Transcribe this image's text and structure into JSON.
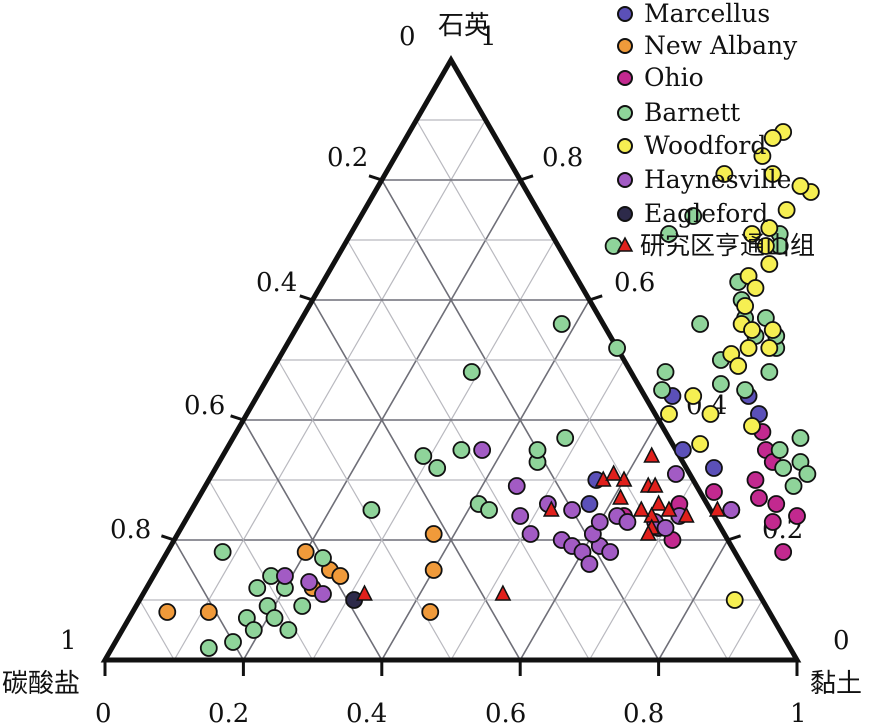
{
  "chart_data": {
    "type": "scatter",
    "subtype": "ternary",
    "grid": true,
    "legend_position": "top-right",
    "corners": {
      "top": "石英",
      "left": "碳酸盐",
      "right": "黏土"
    },
    "axes": {
      "clay_ticks": [
        "0",
        "0.2",
        "0.4",
        "0.6",
        "0.8",
        "1"
      ],
      "quartz_ticks": [
        "0.2",
        "0.4",
        "0.6",
        "0.8"
      ],
      "carbonate_ticks": [
        "0",
        "0.2",
        "0.4",
        "0.6",
        "0.8",
        "1"
      ],
      "quartz_apex_left": "0",
      "quartz_apex_right": "1"
    },
    "series": [
      {
        "name": "Marcellus",
        "color": "#5b50b8",
        "marker": "circle",
        "points": [
          [
            0.6,
            0.44
          ],
          [
            0.71,
            0.44
          ],
          [
            0.66,
            0.35
          ],
          [
            0.72,
            0.32
          ],
          [
            0.56,
            0.3
          ],
          [
            0.74,
            0.41
          ],
          [
            0.57,
            0.26
          ]
        ]
      },
      {
        "name": "New Albany",
        "color": "#f09a3a",
        "marker": "circle",
        "points": [
          [
            0.2,
            0.18
          ],
          [
            0.25,
            0.15
          ],
          [
            0.24,
            0.12
          ],
          [
            0.11,
            0.08
          ],
          [
            0.27,
            0.14
          ],
          [
            0.05,
            0.08
          ],
          [
            0.4,
            0.15
          ],
          [
            0.37,
            0.21
          ],
          [
            0.43,
            0.08
          ]
        ]
      },
      {
        "name": "Ohio",
        "color": "#c2298f",
        "marker": "circle",
        "points": [
          [
            0.76,
            0.38
          ],
          [
            0.78,
            0.35
          ],
          [
            0.79,
            0.3
          ],
          [
            0.81,
            0.27
          ],
          [
            0.78,
            0.25
          ],
          [
            0.84,
            0.26
          ],
          [
            0.7,
            0.26
          ],
          [
            0.74,
            0.28
          ],
          [
            0.88,
            0.24
          ],
          [
            0.89,
            0.18
          ],
          [
            0.85,
            0.23
          ],
          [
            0.72,
            0.2
          ],
          [
            0.63,
            0.24
          ],
          [
            0.8,
            0.33
          ]
        ]
      },
      {
        "name": "Barnett",
        "color": "#8fd49a",
        "marker": "circle",
        "points": [
          [
            0.48,
            0.74
          ],
          [
            0.46,
            0.71
          ],
          [
            0.48,
            0.52
          ],
          [
            0.39,
            0.69
          ],
          [
            0.38,
            0.56
          ],
          [
            0.29,
            0.48
          ],
          [
            0.29,
            0.34
          ],
          [
            0.34,
            0.35
          ],
          [
            0.32,
            0.32
          ],
          [
            0.41,
            0.26
          ],
          [
            0.43,
            0.25
          ],
          [
            0.46,
            0.33
          ],
          [
            0.45,
            0.35
          ],
          [
            0.48,
            0.37
          ],
          [
            0.26,
            0.25
          ],
          [
            0.23,
            0.17
          ],
          [
            0.17,
            0.14
          ],
          [
            0.16,
            0.12
          ],
          [
            0.19,
            0.09
          ],
          [
            0.17,
            0.07
          ],
          [
            0.21,
            0.07
          ],
          [
            0.19,
            0.05
          ],
          [
            0.17,
            0.03
          ],
          [
            0.14,
            0.02
          ],
          [
            0.24,
            0.05
          ],
          [
            0.24,
            0.09
          ],
          [
            0.08,
            0.18
          ],
          [
            0.2,
            0.12
          ],
          [
            0.62,
            0.6
          ],
          [
            0.64,
            0.57
          ],
          [
            0.67,
            0.54
          ],
          [
            0.71,
            0.52
          ],
          [
            0.72,
            0.48
          ],
          [
            0.7,
            0.45
          ],
          [
            0.66,
            0.46
          ],
          [
            0.64,
            0.5
          ],
          [
            0.58,
            0.45
          ],
          [
            0.58,
            0.56
          ],
          [
            0.57,
            0.48
          ],
          [
            0.82,
            0.37
          ],
          [
            0.8,
            0.35
          ],
          [
            0.82,
            0.32
          ],
          [
            0.84,
            0.33
          ],
          [
            0.86,
            0.31
          ],
          [
            0.85,
            0.29
          ],
          [
            0.62,
            0.71
          ],
          [
            0.63,
            0.69
          ],
          [
            0.6,
            0.63
          ],
          [
            0.67,
            0.57
          ],
          [
            0.7,
            0.54
          ]
        ]
      },
      {
        "name": "Woodford",
        "color": "#f6ef52",
        "marker": "circle",
        "points": [
          [
            0.54,
            0.88
          ],
          [
            0.53,
            0.87
          ],
          [
            0.53,
            0.84
          ],
          [
            0.49,
            0.81
          ],
          [
            0.56,
            0.81
          ],
          [
            0.58,
            0.71
          ],
          [
            0.61,
            0.69
          ],
          [
            0.63,
            0.66
          ],
          [
            0.61,
            0.64
          ],
          [
            0.63,
            0.62
          ],
          [
            0.63,
            0.59
          ],
          [
            0.64,
            0.56
          ],
          [
            0.66,
            0.55
          ],
          [
            0.69,
            0.55
          ],
          [
            0.67,
            0.52
          ],
          [
            0.65,
            0.51
          ],
          [
            0.7,
            0.52
          ],
          [
            0.67,
            0.49
          ],
          [
            0.63,
            0.44
          ],
          [
            0.61,
            0.41
          ],
          [
            0.67,
            0.41
          ],
          [
            0.74,
            0.39
          ],
          [
            0.68,
            0.36
          ],
          [
            0.86,
            0.1
          ],
          [
            0.61,
            0.75
          ],
          [
            0.63,
            0.78
          ],
          [
            0.61,
            0.79
          ],
          [
            0.6,
            0.72
          ]
        ]
      },
      {
        "name": "Haynesville",
        "color": "#a25bc4",
        "marker": "circle",
        "points": [
          [
            0.37,
            0.35
          ],
          [
            0.45,
            0.29
          ],
          [
            0.48,
            0.24
          ],
          [
            0.51,
            0.21
          ],
          [
            0.56,
            0.2
          ],
          [
            0.58,
            0.19
          ],
          [
            0.6,
            0.18
          ],
          [
            0.62,
            0.19
          ],
          [
            0.6,
            0.21
          ],
          [
            0.64,
            0.18
          ],
          [
            0.62,
            0.16
          ],
          [
            0.6,
            0.23
          ],
          [
            0.62,
            0.24
          ],
          [
            0.55,
            0.25
          ],
          [
            0.51,
            0.26
          ],
          [
            0.69,
            0.22
          ],
          [
            0.68,
            0.23
          ],
          [
            0.7,
            0.22
          ],
          [
            0.23,
            0.13
          ],
          [
            0.26,
            0.11
          ],
          [
            0.19,
            0.14
          ],
          [
            0.64,
            0.23
          ],
          [
            0.71,
            0.24
          ],
          [
            0.78,
            0.25
          ],
          [
            0.67,
            0.31
          ]
        ]
      },
      {
        "name": "Eagleford",
        "color": "#2d2a4a",
        "marker": "circle",
        "points": [
          [
            0.31,
            0.1
          ]
        ]
      },
      {
        "name": "研究区亨通山组",
        "color": "#e0201c",
        "marker": "triangle",
        "points": [
          [
            0.62,
            0.34
          ],
          [
            0.6,
            0.3
          ],
          [
            0.57,
            0.3
          ],
          [
            0.61,
            0.27
          ],
          [
            0.64,
            0.29
          ],
          [
            0.65,
            0.29
          ],
          [
            0.67,
            0.26
          ],
          [
            0.67,
            0.24
          ],
          [
            0.68,
            0.22
          ],
          [
            0.69,
            0.25
          ],
          [
            0.52,
            0.25
          ],
          [
            0.65,
            0.25
          ],
          [
            0.68,
            0.21
          ],
          [
            0.72,
            0.24
          ],
          [
            0.76,
            0.25
          ],
          [
            0.32,
            0.11
          ],
          [
            0.58,
            0.31
          ],
          [
            0.52,
            0.11
          ]
        ]
      }
    ]
  }
}
